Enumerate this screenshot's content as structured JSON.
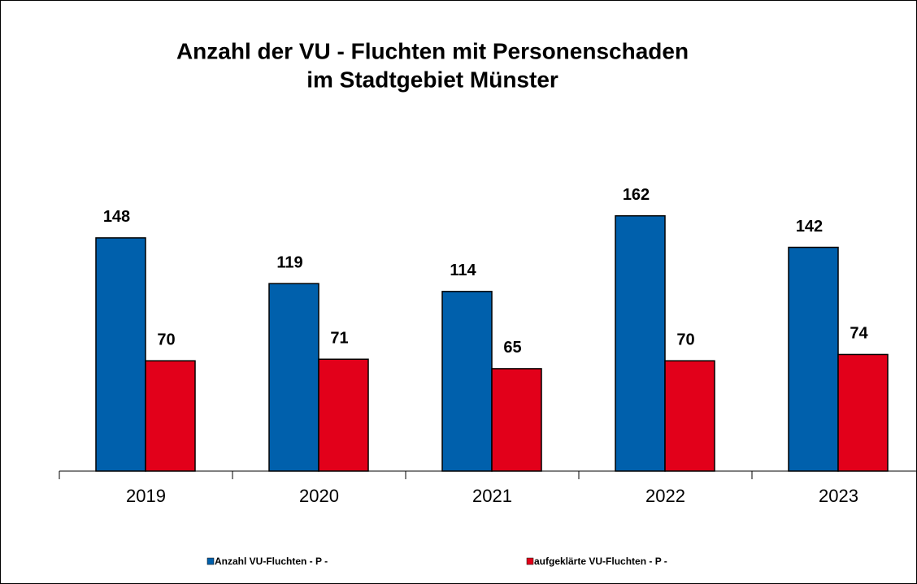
{
  "chart_data": {
    "type": "bar",
    "title": [
      "Anzahl der VU - Fluchten mit Personenschaden",
      "im Stadtgebiet Münster"
    ],
    "categories": [
      "2019",
      "2020",
      "2021",
      "2022",
      "2023"
    ],
    "series": [
      {
        "name": "Anzahl VU-Fluchten - P -",
        "color": "#0060ac",
        "values": [
          148,
          119,
          114,
          162,
          142
        ]
      },
      {
        "name": "aufgeklärte VU-Fluchten - P -",
        "color": "#e2001a",
        "values": [
          70,
          71,
          65,
          70,
          74
        ]
      }
    ],
    "ylim": [
      0,
      290
    ],
    "legend": "bottom"
  }
}
